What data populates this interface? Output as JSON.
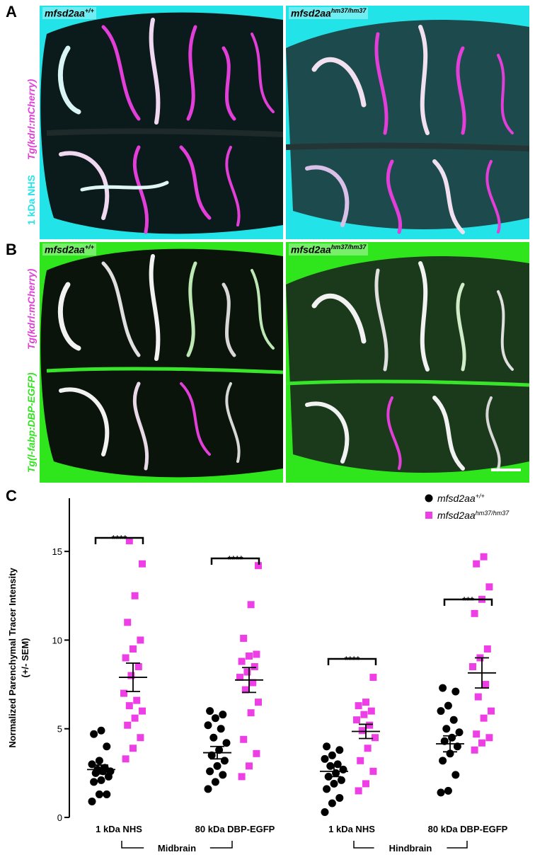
{
  "panels": {
    "A": {
      "letter": "A",
      "left_label": "mfsd2aa",
      "left_sup": "+/+",
      "right_label": "mfsd2aa",
      "right_sup": "hm37/hm37",
      "side_label_tracer": "1 kDa NHS",
      "side_label_reporter": "Tg(kdrl:mCherry)",
      "tracer_color": "#22e3e8",
      "vessel_color": "#e23fd8"
    },
    "B": {
      "letter": "B",
      "left_label": "mfsd2aa",
      "left_sup": "+/+",
      "right_label": "mfsd2aa",
      "right_sup": "hm37/hm37",
      "side_label_tracer": "Tg(l-fabp:DBP-EGFP)",
      "side_label_reporter": "Tg(kdrl:mCherry)",
      "tracer_color": "#2fe61c",
      "vessel_color": "#e23fd8"
    },
    "C": {
      "letter": "C"
    }
  },
  "chart_data": {
    "type": "scatter",
    "ylabel_line1": "Normalized Parenchymal Tracer Intensity",
    "ylabel_line2": "(+/- SEM)",
    "ylim": [
      0,
      18
    ],
    "yticks": [
      "0",
      "5",
      "10",
      "15"
    ],
    "ytick_values": [
      0,
      5,
      10,
      15
    ],
    "categories": [
      "1 kDa NHS",
      "80 kDa DBP-EGFP",
      "1 kDa NHS",
      "80 kDa DBP-EGFP"
    ],
    "groups": [
      "Midbrain",
      "Hindbrain"
    ],
    "legend": [
      {
        "label": "mfsd2aa",
        "sup": "+/+",
        "color": "#000000",
        "marker": "circle"
      },
      {
        "label": "mfsd2aa",
        "sup": "hm37/hm37",
        "color": "#ee3fe6",
        "marker": "square"
      }
    ],
    "significance": [
      "****",
      "****",
      "****",
      "***"
    ],
    "series": [
      {
        "name": "mfsd2aa+/+",
        "color": "#000000",
        "means": [
          2.7,
          3.65,
          2.6,
          4.15
        ],
        "sem": [
          0.25,
          0.35,
          0.3,
          0.45
        ],
        "points": [
          [
            0.9,
            1.3,
            1.3,
            2.0,
            2.1,
            2.3,
            2.5,
            2.6,
            2.6,
            2.7,
            2.8,
            3.0,
            3.2,
            4.0,
            4.7,
            4.9
          ],
          [
            1.6,
            2.0,
            2.4,
            2.6,
            2.9,
            3.2,
            3.5,
            3.8,
            4.2,
            4.5,
            5.0,
            5.2,
            5.6,
            5.8,
            6.0
          ],
          [
            0.3,
            0.8,
            1.1,
            1.6,
            1.9,
            2.1,
            2.3,
            2.5,
            2.7,
            2.9,
            3.0,
            3.3,
            3.5,
            3.8,
            4.0
          ],
          [
            1.4,
            1.5,
            2.4,
            3.2,
            3.6,
            4.0,
            4.3,
            4.5,
            4.8,
            5.0,
            5.5,
            6.0,
            6.3,
            7.1,
            7.3
          ]
        ]
      },
      {
        "name": "mfsd2aa hm37/hm37",
        "color": "#ee3fe6",
        "means": [
          7.9,
          7.75,
          4.85,
          8.15
        ],
        "sem": [
          0.8,
          0.7,
          0.4,
          0.85
        ],
        "points": [
          [
            3.3,
            3.9,
            4.5,
            5.2,
            5.6,
            6.0,
            6.3,
            6.6,
            7.0,
            8.0,
            8.5,
            9.0,
            9.5,
            10.0,
            11.0,
            12.5,
            14.3,
            15.6
          ],
          [
            2.3,
            2.9,
            3.6,
            4.4,
            5.9,
            6.5,
            7.2,
            7.6,
            7.9,
            8.2,
            8.5,
            8.8,
            9.1,
            9.2,
            10.1,
            12.0,
            14.2
          ],
          [
            1.5,
            1.9,
            2.6,
            3.2,
            3.9,
            4.5,
            4.9,
            5.2,
            5.5,
            5.8,
            6.0,
            6.3,
            6.5,
            7.9
          ],
          [
            3.8,
            4.2,
            4.5,
            4.7,
            5.6,
            6.0,
            6.8,
            7.5,
            8.5,
            9.0,
            9.5,
            11.5,
            12.3,
            13.0,
            14.3,
            14.7
          ]
        ]
      }
    ]
  }
}
